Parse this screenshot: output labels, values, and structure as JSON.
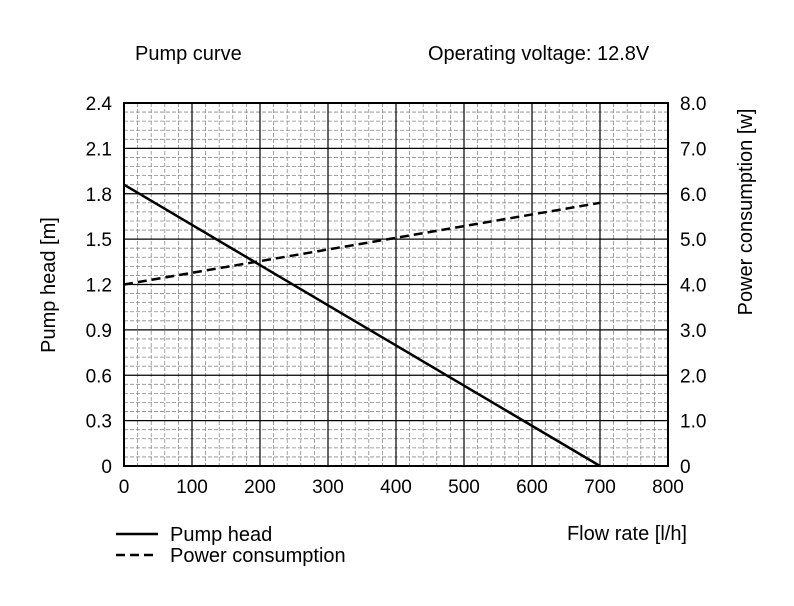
{
  "chart_data": {
    "type": "line",
    "title": "Pump curve",
    "subtitle": "Operating voltage: 12.8V",
    "xlabel": "Flow rate [l/h]",
    "ylabel": "Pump head [m]",
    "y2label": "Power consumption [w]",
    "xlim": [
      0,
      800
    ],
    "ylim": [
      0,
      2.4
    ],
    "y2lim": [
      0,
      8.0
    ],
    "x_ticks": [
      "0",
      "100",
      "200",
      "300",
      "400",
      "500",
      "600",
      "700",
      "800"
    ],
    "y_ticks": [
      "0",
      "0.3",
      "0.6",
      "0.9",
      "1.2",
      "1.5",
      "1.8",
      "2.1",
      "2.4"
    ],
    "y2_ticks": [
      "0",
      "1.0",
      "2.0",
      "3.0",
      "4.0",
      "5.0",
      "6.0",
      "7.0",
      "8.0"
    ],
    "grid": true,
    "legend_placement": "bottom-left",
    "series": [
      {
        "name": "Pump head",
        "axis": "left",
        "style": "solid",
        "x": [
          0,
          700
        ],
        "y": [
          1.86,
          0
        ]
      },
      {
        "name": "Power consumption",
        "axis": "right",
        "style": "dashed",
        "x": [
          0,
          700
        ],
        "y": [
          4.0,
          5.8
        ]
      }
    ]
  }
}
